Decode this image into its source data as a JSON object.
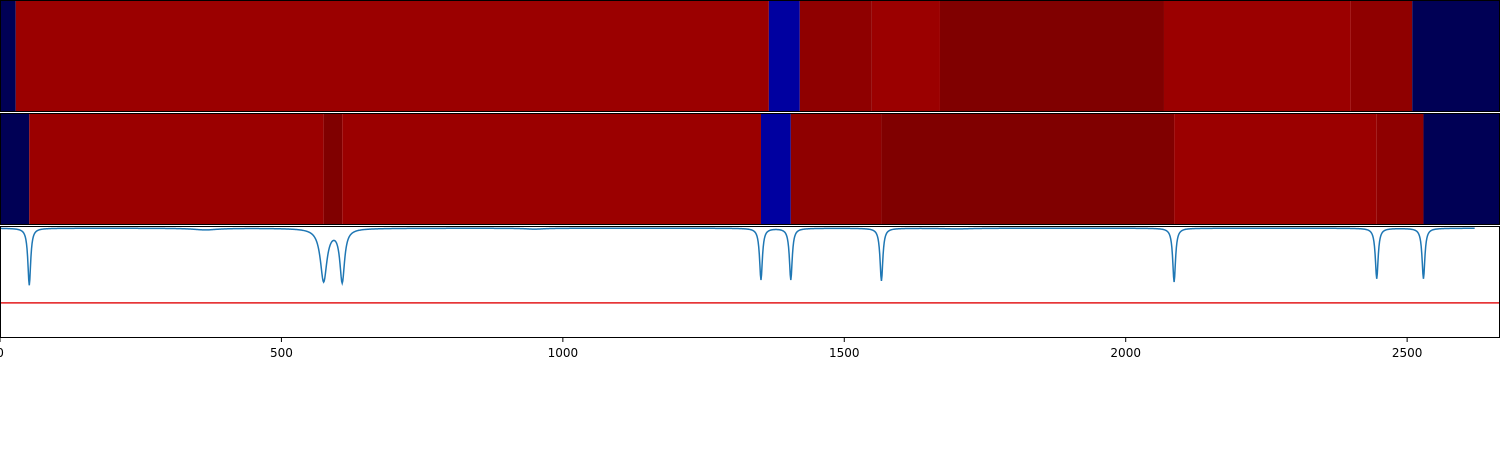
{
  "chart_data": {
    "type": "heatmap",
    "xlim": [
      0,
      2665
    ],
    "x_ticks": [
      0,
      500,
      1000,
      1500,
      2000,
      2500
    ],
    "x_tick_labels": [
      "0",
      "500",
      "1000",
      "1500",
      "2000",
      "2500"
    ],
    "colors": {
      "navy": "#000055",
      "blue": "#0000a0",
      "red": "#9b0000",
      "mid_red": "#8f0000",
      "dark_red": "#800000",
      "line": "#1f77b4",
      "threshold": "#e31a1c"
    },
    "tracks": [
      {
        "segments": [
          {
            "start": 0,
            "end": 28,
            "color": "navy"
          },
          {
            "start": 28,
            "end": 1366,
            "color": "red"
          },
          {
            "start": 1366,
            "end": 1421,
            "color": "blue"
          },
          {
            "start": 1421,
            "end": 1549,
            "color": "mid_red"
          },
          {
            "start": 1549,
            "end": 1670,
            "color": "red"
          },
          {
            "start": 1670,
            "end": 2068,
            "color": "dark_red"
          },
          {
            "start": 2068,
            "end": 2400,
            "color": "red"
          },
          {
            "start": 2400,
            "end": 2509,
            "color": "mid_red"
          },
          {
            "start": 2509,
            "end": 2665,
            "color": "navy"
          }
        ]
      },
      {
        "segments": [
          {
            "start": 0,
            "end": 52,
            "color": "navy"
          },
          {
            "start": 52,
            "end": 575,
            "color": "red"
          },
          {
            "start": 575,
            "end": 608,
            "color": "dark_red"
          },
          {
            "start": 608,
            "end": 1352,
            "color": "red"
          },
          {
            "start": 1352,
            "end": 1405,
            "color": "blue"
          },
          {
            "start": 1405,
            "end": 1566,
            "color": "mid_red"
          },
          {
            "start": 1566,
            "end": 2086,
            "color": "dark_red"
          },
          {
            "start": 2086,
            "end": 2446,
            "color": "red"
          },
          {
            "start": 2446,
            "end": 2529,
            "color": "mid_red"
          },
          {
            "start": 2529,
            "end": 2665,
            "color": "navy"
          }
        ]
      }
    ],
    "line_plot": {
      "ylim": [
        -1.0,
        0.02
      ],
      "baseline": 0,
      "threshold": -0.68,
      "dips": [
        {
          "x": 52,
          "depth": -0.52,
          "width": 3
        },
        {
          "x": 575,
          "depth": -0.48,
          "width": 7
        },
        {
          "x": 608,
          "depth": -0.48,
          "width": 5
        },
        {
          "x": 1352,
          "depth": -0.47,
          "width": 3
        },
        {
          "x": 1405,
          "depth": -0.47,
          "width": 3
        },
        {
          "x": 1566,
          "depth": -0.48,
          "width": 3
        },
        {
          "x": 2086,
          "depth": -0.49,
          "width": 3
        },
        {
          "x": 2446,
          "depth": -0.46,
          "width": 3
        },
        {
          "x": 2529,
          "depth": -0.46,
          "width": 3
        }
      ],
      "bumps": [
        {
          "x": 365,
          "depth": -0.015,
          "width": 25
        },
        {
          "x": 950,
          "depth": -0.008,
          "width": 20
        },
        {
          "x": 1700,
          "depth": -0.006,
          "width": 30
        }
      ]
    }
  }
}
